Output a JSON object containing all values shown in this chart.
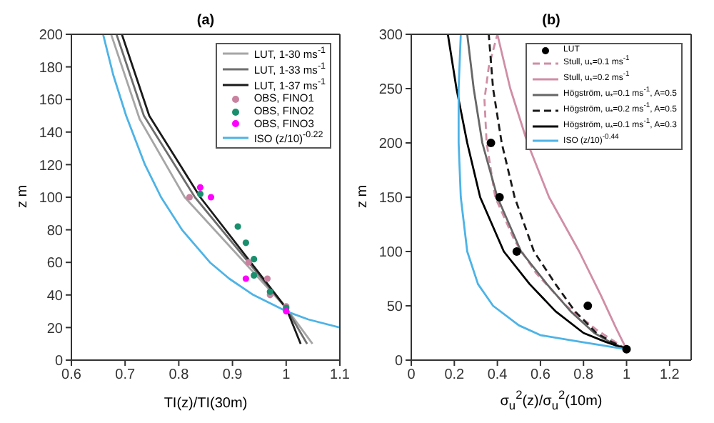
{
  "chart_data": [
    {
      "type": "line",
      "title": "(a)",
      "xlabel": "TI(z)/TI(30m)",
      "ylabel": "z m",
      "xlim": [
        0.6,
        1.1
      ],
      "ylim": [
        0,
        200
      ],
      "xticks": [
        0.6,
        0.7,
        0.8,
        0.9,
        1,
        1.1
      ],
      "yticks": [
        0,
        20,
        40,
        60,
        80,
        100,
        120,
        140,
        160,
        180,
        200
      ],
      "legend": "top right",
      "series": [
        {
          "name": "LUT, 1-30 ms$^{-1}$",
          "color": "#a6a6a6",
          "line_style": "solid",
          "marker": "none",
          "x": [
            1.049,
            1.0,
            0.811,
            0.727,
            0.674
          ],
          "values": [
            10,
            32,
            100,
            148,
            200
          ]
        },
        {
          "name": "LUT, 1-33 ms$^{-1}$",
          "color": "#6e6e6e",
          "line_style": "solid",
          "marker": "none",
          "x": [
            1.039,
            1.0,
            0.83,
            0.735,
            0.684
          ],
          "values": [
            10,
            32,
            100,
            150,
            200
          ]
        },
        {
          "name": "LUT, 1-37 ms$^{-1}$",
          "color": "#1a1a1a",
          "line_style": "solid",
          "marker": "none",
          "x": [
            1.027,
            1.0,
            0.84,
            0.745,
            0.694
          ],
          "values": [
            10,
            32,
            100,
            150,
            200
          ]
        },
        {
          "name": "OBS, FINO1",
          "type": "scatter",
          "color": "#c9829f",
          "marker": "circle",
          "x": [
            0.82,
            0.93,
            0.965,
            0.97,
            1.0
          ],
          "values": [
            100,
            60,
            50,
            40,
            33
          ]
        },
        {
          "name": "OBS, FINO2",
          "type": "scatter",
          "color": "#1a8f6e",
          "marker": "circle",
          "x": [
            0.84,
            0.91,
            0.925,
            0.94,
            0.94,
            0.97,
            1.0
          ],
          "values": [
            102,
            82,
            72,
            62,
            52,
            42,
            32
          ]
        },
        {
          "name": "OBS, FINO3",
          "type": "scatter",
          "color": "#ff00ff",
          "marker": "circle",
          "x": [
            0.84,
            0.86,
            0.925,
            1.0
          ],
          "values": [
            106,
            100,
            50,
            30
          ]
        },
        {
          "name": "ISO (z/10)$^{-0.22}$",
          "color": "#4db3e6",
          "line_style": "solid",
          "marker": "none",
          "x": [
            1.1,
            1.041,
            1.0,
            0.939,
            0.894,
            0.858,
            0.806,
            0.767,
            0.737,
            0.702,
            0.678,
            0.659
          ],
          "values": [
            20,
            25,
            30,
            40,
            50,
            60,
            80,
            100,
            120,
            150,
            175,
            200
          ]
        }
      ]
    },
    {
      "type": "line",
      "title": "(b)",
      "xlabel": "σ$_{u}$$^{2}$(z)/σ$_{u}$$^{2}$(10m)",
      "ylabel": "z m",
      "xlim": [
        0,
        1.3
      ],
      "ylim": [
        0,
        300
      ],
      "xticks": [
        0,
        0.2,
        0.4,
        0.6,
        0.8,
        1,
        1.2
      ],
      "yticks": [
        0,
        50,
        100,
        150,
        200,
        250,
        300
      ],
      "legend": "top right",
      "series": [
        {
          "name": "LUT",
          "type": "scatter",
          "color": "#000000",
          "marker": "circle",
          "x": [
            1.0,
            0.82,
            0.49,
            0.41,
            0.37
          ],
          "values": [
            10,
            50,
            100,
            150,
            200
          ]
        },
        {
          "name": "Stull, u$_{*}$=0.1 ms$^{-1}$",
          "color": "#d08ea6",
          "line_style": "dashed",
          "marker": "none",
          "x": [
            1,
            0.86,
            0.72,
            0.58,
            0.48,
            0.39,
            0.35,
            0.34,
            0.36,
            0.4
          ],
          "values": [
            10,
            28,
            50,
            80,
            110,
            150,
            200,
            240,
            270,
            300
          ]
        },
        {
          "name": "Stull, u$_{*}$=0.2 ms$^{-1}$",
          "color": "#d08ea6",
          "line_style": "solid",
          "marker": "none",
          "x": [
            1,
            0.95,
            0.88,
            0.78,
            0.64,
            0.54,
            0.46,
            0.4
          ],
          "values": [
            10,
            30,
            60,
            100,
            150,
            200,
            250,
            300
          ]
        },
        {
          "name": "Högström, u$_{*}$=0.1 ms$^{-1}$, A=0.5",
          "color": "#666666",
          "line_style": "solid",
          "marker": "none",
          "x": [
            1,
            0.92,
            0.85,
            0.74,
            0.63,
            0.51,
            0.4,
            0.33,
            0.29,
            0.26
          ],
          "values": [
            10,
            17,
            25,
            45,
            70,
            100,
            150,
            200,
            250,
            300
          ]
        },
        {
          "name": "Högström, u$_{*}$=0.2 ms$^{-1}$, A=0.5",
          "color": "#1a1a1a",
          "line_style": "dashed",
          "marker": "none",
          "x": [
            1,
            0.93,
            0.86,
            0.76,
            0.67,
            0.57,
            0.48,
            0.42,
            0.38,
            0.36
          ],
          "values": [
            10,
            17,
            25,
            45,
            70,
            100,
            150,
            200,
            250,
            300
          ]
        },
        {
          "name": "Högström, u$_{*}$=0.1 ms$^{-1}$, A=0.3",
          "color": "#000000",
          "line_style": "solid",
          "marker": "none",
          "x": [
            1,
            0.9,
            0.8,
            0.67,
            0.55,
            0.43,
            0.32,
            0.26,
            0.21,
            0.17
          ],
          "values": [
            10,
            17,
            25,
            45,
            70,
            100,
            150,
            200,
            250,
            300
          ]
        },
        {
          "name": "ISO (z/10)$^{-0.44}$",
          "color": "#4db3e6",
          "line_style": "solid",
          "marker": "none",
          "x": [
            1,
            0.75,
            0.6,
            0.5,
            0.38,
            0.31,
            0.26,
            0.23,
            0.22,
            0.22,
            0.23
          ],
          "values": [
            10,
            18,
            23,
            32,
            50,
            70,
            100,
            150,
            200,
            250,
            300
          ]
        }
      ]
    }
  ]
}
